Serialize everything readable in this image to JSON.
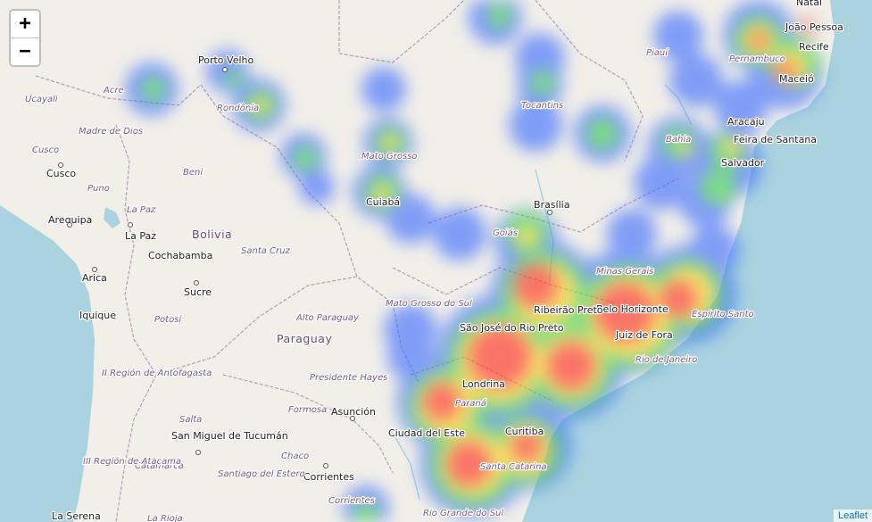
{
  "controls": {
    "zoom_in": "+",
    "zoom_out": "−"
  },
  "attribution": "Leaflet",
  "colors": {
    "ocean": "#aad3df",
    "land": "#f2efe9",
    "border": "#b89bb5",
    "river": "#aad3df"
  },
  "countries": [
    "Bolivia",
    "Paraguay"
  ],
  "cities": [
    "Porto Velho",
    "Natal",
    "João Pessoa",
    "Recife",
    "Maceió",
    "Aracaju",
    "Feira de Santana",
    "Salvador",
    "Brasília",
    "Belo Horizonte",
    "Juiz de Fora",
    "São José do Rio Preto",
    "Ribeirão Preto",
    "Londrina",
    "Curitiba",
    "Cuiabá",
    "Cusco",
    "Arequipa",
    "La Paz",
    "Cochabamba",
    "Sucre",
    "Arica",
    "Iquique",
    "Asunción",
    "Ciudad del Este",
    "San Miguel de Tucumán",
    "Corrientes",
    "La Serena"
  ],
  "states": [
    "Ucayali",
    "Acre",
    "Rondônia",
    "Madre de Dios",
    "Cusco",
    "Puno",
    "Beni",
    "La Paz",
    "Santa Cruz",
    "Potosí",
    "Mato Grosso",
    "Goiás",
    "Mato Grosso do Sul",
    "Piauí",
    "Tocantins",
    "Bahia",
    "Pernambuco",
    "Minas Gerais",
    "Alto Paraguay",
    "Presidente Hayes",
    "Formosa",
    "Chaco",
    "Salta",
    "Catamarca",
    "Santiago del Estero",
    "II Región de Antofagasta",
    "III Región de Atacama",
    "Paraná",
    "Santa Catarina",
    "Rio Grande do Sul",
    "Espírito Santo",
    "Rio de Janeiro",
    "Corrientes",
    "La Rioja"
  ]
}
